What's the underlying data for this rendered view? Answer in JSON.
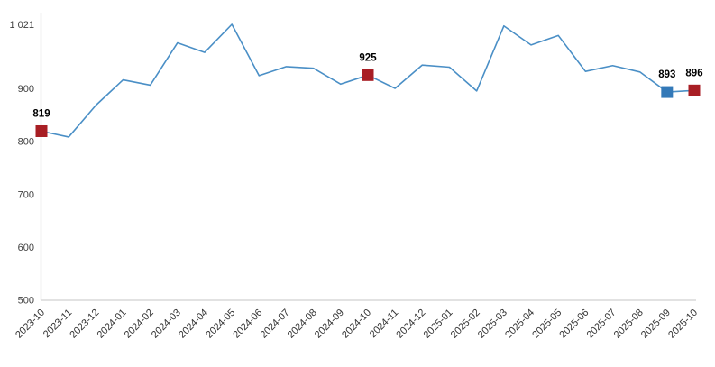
{
  "chart_data": {
    "type": "line",
    "title": "",
    "xlabel": "",
    "ylabel": "",
    "grid": false,
    "legend": "none",
    "ylim": [
      500,
      1021
    ],
    "x": [
      "2023-10",
      "2023-11",
      "2023-12",
      "2024-01",
      "2024-02",
      "2024-03",
      "2024-04",
      "2024-05",
      "2024-06",
      "2024-07",
      "2024-08",
      "2024-09",
      "2024-10",
      "2024-11",
      "2024-12",
      "2025-01",
      "2025-02",
      "2025-03",
      "2025-04",
      "2025-05",
      "2025-06",
      "2025-07",
      "2025-08",
      "2025-09",
      "2025-10"
    ],
    "series": [
      {
        "name": "monthly-values",
        "values": [
          819,
          808,
          868,
          916,
          906,
          986,
          968,
          1021,
          924,
          941,
          938,
          908,
          925,
          900,
          944,
          940,
          895,
          1018,
          982,
          1000,
          932,
          943,
          931,
          893,
          896
        ]
      }
    ],
    "y_ticks": [
      {
        "value": 1021,
        "label": "1 021"
      },
      {
        "value": 900,
        "label": "900"
      },
      {
        "value": 800,
        "label": "800"
      },
      {
        "value": 700,
        "label": "700"
      },
      {
        "value": 600,
        "label": "600"
      },
      {
        "value": 500,
        "label": "500"
      }
    ],
    "highlighted_points": [
      {
        "x": "2023-10",
        "value": 819,
        "label": "819",
        "color_key": "marker_red"
      },
      {
        "x": "2024-10",
        "value": 925,
        "label": "925",
        "color_key": "marker_red"
      },
      {
        "x": "2025-09",
        "value": 893,
        "label": "893",
        "color_key": "marker_blue"
      },
      {
        "x": "2025-10",
        "value": 896,
        "label": "896",
        "color_key": "marker_red"
      }
    ],
    "colors": {
      "line": "#4a8fc6",
      "marker_red": "#a81e24",
      "marker_blue": "#3379b8",
      "axis": "#d9d9d9",
      "ytick_text": "#3f3f3f",
      "xtick_text": "#333333",
      "label_text": "#000000"
    }
  }
}
